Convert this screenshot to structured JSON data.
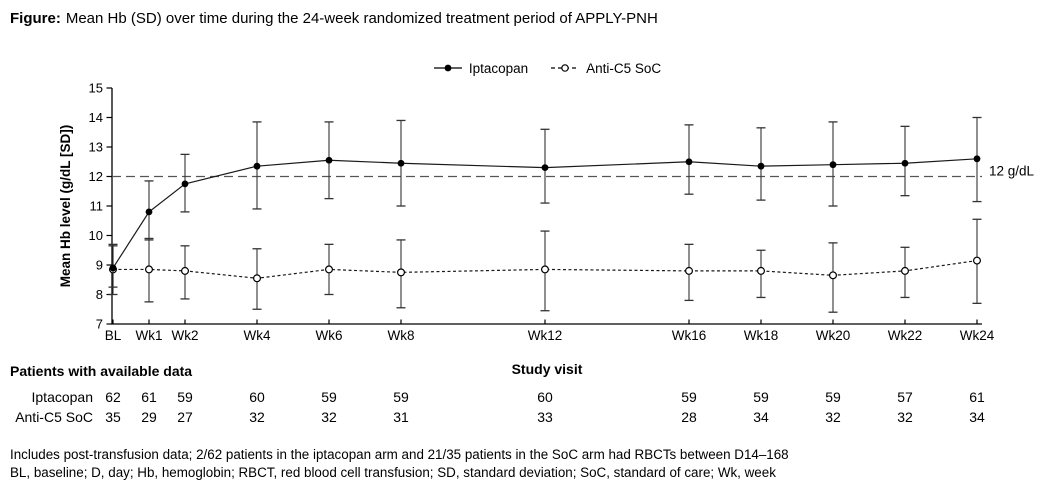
{
  "figure": {
    "label": "Figure:",
    "caption": "Mean Hb (SD) over time during the 24-week randomized treatment period of APPLY-PNH"
  },
  "chart_data": {
    "type": "line",
    "title": "Mean Hb (SD) over time during the 24-week randomized treatment period of APPLY-PNH",
    "xlabel": "Study visit",
    "ylabel": "Mean Hb level (g/dL [SD])",
    "ylim": [
      7,
      15
    ],
    "yticks": [
      7,
      8,
      9,
      10,
      11,
      12,
      13,
      14,
      15
    ],
    "x_weeks": [
      0,
      1,
      2,
      4,
      6,
      8,
      12,
      16,
      18,
      20,
      22,
      24
    ],
    "x_labels": [
      "BL",
      "Wk1",
      "Wk2",
      "Wk4",
      "Wk6",
      "Wk8",
      "Wk12",
      "Wk16",
      "Wk18",
      "Wk20",
      "Wk22",
      "Wk24"
    ],
    "grid": false,
    "legend_position": "top-center",
    "reference_line": {
      "value": 12,
      "label": "12 g/dL"
    },
    "series": [
      {
        "name": "Iptacopan",
        "marker": "filled-circle",
        "line_style": "solid",
        "mean": [
          8.9,
          10.8,
          11.75,
          12.35,
          12.55,
          12.45,
          12.3,
          12.5,
          12.35,
          12.4,
          12.45,
          12.6
        ],
        "upper": [
          9.7,
          11.85,
          12.75,
          13.85,
          13.85,
          13.9,
          13.6,
          13.75,
          13.65,
          13.85,
          13.7,
          14.0
        ],
        "lower": [
          8.0,
          9.85,
          10.8,
          10.9,
          11.25,
          11.0,
          11.1,
          11.4,
          11.2,
          11.0,
          11.35,
          11.15
        ],
        "n_available": [
          62,
          61,
          59,
          60,
          59,
          59,
          60,
          59,
          59,
          59,
          57,
          61
        ]
      },
      {
        "name": "Anti-C5 SoC",
        "marker": "open-circle",
        "line_style": "dashed",
        "mean": [
          8.85,
          8.85,
          8.8,
          8.55,
          8.85,
          8.75,
          8.85,
          8.8,
          8.8,
          8.65,
          8.8,
          9.15
        ],
        "upper": [
          9.65,
          9.9,
          9.65,
          9.55,
          9.7,
          9.85,
          10.15,
          9.7,
          9.5,
          9.75,
          9.6,
          10.55
        ],
        "lower": [
          8.25,
          7.75,
          7.85,
          7.5,
          8.0,
          7.55,
          7.45,
          7.8,
          7.9,
          7.4,
          7.9,
          7.7
        ],
        "n_available": [
          35,
          29,
          27,
          32,
          32,
          31,
          33,
          28,
          34,
          32,
          32,
          34
        ]
      }
    ]
  },
  "table": {
    "header": "Patients with available data"
  },
  "footnotes": {
    "line1": "Includes post-transfusion data; 2/62 patients in the iptacopan arm and 21/35 patients in the SoC arm had RBCTs between D14–168",
    "line2": "BL, baseline; D, day; Hb, hemoglobin; RBCT, red blood cell transfusion; SD, standard deviation; SoC, standard of care; Wk, week"
  },
  "colors": {
    "background": "#ffffff",
    "text": "#000000",
    "series_line": "#1a1a1a",
    "error_bar": "#333333",
    "reference_line": "#555555"
  }
}
